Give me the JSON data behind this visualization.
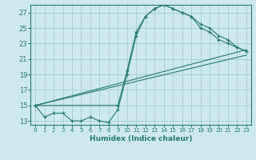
{
  "title": "",
  "xlabel": "Humidex (Indice chaleur)",
  "bg_color": "#cde8ef",
  "grid_color": "#a8d0d8",
  "line_color": "#2a7a6e",
  "xlim": [
    -0.5,
    23.5
  ],
  "ylim": [
    12.5,
    28.0
  ],
  "xticks": [
    0,
    1,
    2,
    3,
    4,
    5,
    6,
    7,
    8,
    9,
    10,
    11,
    12,
    13,
    14,
    15,
    16,
    17,
    18,
    19,
    20,
    21,
    22,
    23
  ],
  "yticks": [
    13,
    15,
    17,
    19,
    21,
    23,
    25,
    27
  ],
  "line1_x": [
    0,
    1,
    2,
    3,
    4,
    5,
    6,
    7,
    8,
    9,
    10,
    11,
    12,
    13,
    14,
    15,
    16,
    17,
    18,
    19,
    20,
    21,
    22,
    23
  ],
  "line1_y": [
    15.0,
    13.5,
    14.0,
    14.0,
    13.0,
    13.0,
    13.5,
    13.0,
    12.8,
    14.5,
    19.0,
    24.0,
    26.5,
    27.5,
    28.0,
    27.5,
    27.0,
    26.5,
    25.0,
    24.5,
    23.5,
    23.0,
    22.5,
    22.0
  ],
  "line2_x": [
    0,
    9,
    10,
    11,
    12,
    13,
    14,
    15,
    16,
    17,
    18,
    19,
    20,
    21,
    22,
    23
  ],
  "line2_y": [
    15.0,
    15.0,
    19.5,
    24.5,
    26.5,
    27.5,
    28.0,
    27.5,
    27.0,
    26.5,
    25.5,
    25.0,
    24.0,
    23.5,
    22.5,
    22.0
  ],
  "line3_x": [
    0,
    23
  ],
  "line3_y": [
    15.0,
    21.5
  ],
  "line4_x": [
    0,
    23
  ],
  "line4_y": [
    15.0,
    22.2
  ]
}
